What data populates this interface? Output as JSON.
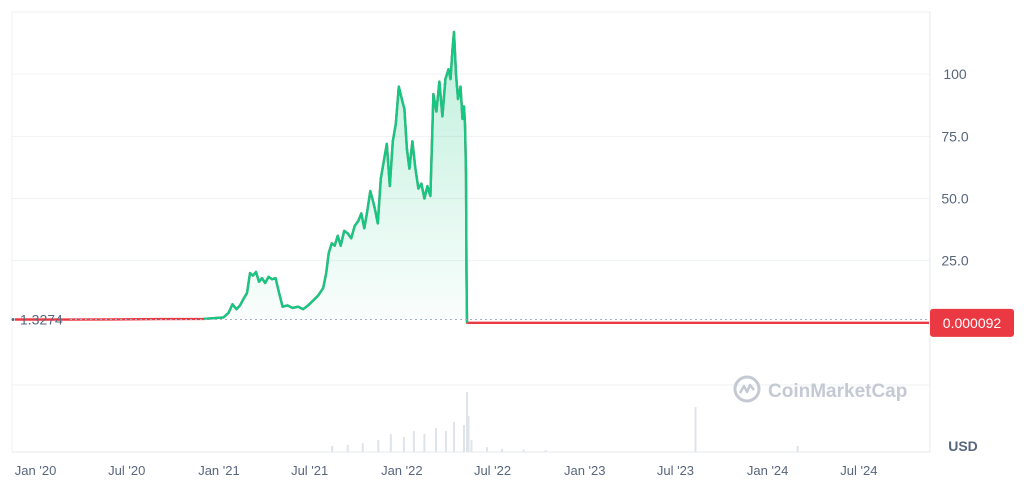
{
  "chart_data": {
    "type": "line",
    "title": "",
    "xlabel": "",
    "ylabel": "",
    "currency_label": "USD",
    "watermark": "CoinMarketCap",
    "baseline_label": "1.3274",
    "current_price_label": "0.000092",
    "y_ticks": [
      {
        "value": 25,
        "label": "25.0"
      },
      {
        "value": 50,
        "label": "50.0"
      },
      {
        "value": 75,
        "label": "75.0"
      },
      {
        "value": 100,
        "label": "100"
      }
    ],
    "ylim": [
      -25,
      125
    ],
    "x_ticks": [
      "Jan '20",
      "Jul '20",
      "Jan '21",
      "Jul '21",
      "Jan '22",
      "Jul '22",
      "Jan '23",
      "Jul '23",
      "Jan '24",
      "Jul '24"
    ],
    "xlim": [
      "2019-11-15",
      "2024-11-20"
    ],
    "grid": true,
    "colors": {
      "up": "#16c784",
      "down": "#ea3943",
      "up_fill": "#16c784",
      "grid": "#eff2f5",
      "axis_text": "#58667e",
      "watermark": "#c4c9d3"
    },
    "series": [
      {
        "points": [
          [
            "2019-11-21",
            1.33
          ],
          [
            "2020-03-01",
            1.3
          ],
          [
            "2020-06-01",
            1.4
          ],
          [
            "2020-09-01",
            1.5
          ],
          [
            "2020-12-01",
            1.6
          ],
          [
            "2021-01-10",
            2.2
          ],
          [
            "2021-01-20",
            4.0
          ],
          [
            "2021-01-28",
            7.5
          ],
          [
            "2021-02-05",
            5.5
          ],
          [
            "2021-02-12",
            7.0
          ],
          [
            "2021-02-20",
            10.0
          ],
          [
            "2021-02-26",
            12.0
          ],
          [
            "2021-03-04",
            20.0
          ],
          [
            "2021-03-10",
            19.0
          ],
          [
            "2021-03-16",
            20.5
          ],
          [
            "2021-03-22",
            16.5
          ],
          [
            "2021-03-28",
            18.0
          ],
          [
            "2021-04-03",
            16.0
          ],
          [
            "2021-04-10",
            18.5
          ],
          [
            "2021-04-17",
            17.5
          ],
          [
            "2021-04-24",
            18.0
          ],
          [
            "2021-05-01",
            12.0
          ],
          [
            "2021-05-08",
            6.5
          ],
          [
            "2021-05-18",
            7.0
          ],
          [
            "2021-05-28",
            6.0
          ],
          [
            "2021-06-08",
            6.5
          ],
          [
            "2021-06-18",
            5.5
          ],
          [
            "2021-06-28",
            7.0
          ],
          [
            "2021-07-08",
            9.0
          ],
          [
            "2021-07-18",
            11.0
          ],
          [
            "2021-07-28",
            14.0
          ],
          [
            "2021-08-03",
            20.0
          ],
          [
            "2021-08-08",
            28.0
          ],
          [
            "2021-08-14",
            32.0
          ],
          [
            "2021-08-20",
            31.0
          ],
          [
            "2021-08-26",
            35.0
          ],
          [
            "2021-09-01",
            31.0
          ],
          [
            "2021-09-08",
            37.0
          ],
          [
            "2021-09-15",
            36.0
          ],
          [
            "2021-09-22",
            34.0
          ],
          [
            "2021-09-29",
            39.0
          ],
          [
            "2021-10-06",
            41.0
          ],
          [
            "2021-10-12",
            44.0
          ],
          [
            "2021-10-18",
            38.0
          ],
          [
            "2021-10-24",
            45.0
          ],
          [
            "2021-10-30",
            53.0
          ],
          [
            "2021-11-03",
            50.0
          ],
          [
            "2021-11-08",
            46.0
          ],
          [
            "2021-11-14",
            40.0
          ],
          [
            "2021-11-20",
            58.0
          ],
          [
            "2021-11-26",
            65.0
          ],
          [
            "2021-12-02",
            72.0
          ],
          [
            "2021-12-08",
            55.0
          ],
          [
            "2021-12-14",
            73.0
          ],
          [
            "2021-12-20",
            80.0
          ],
          [
            "2021-12-26",
            95.0
          ],
          [
            "2022-01-01",
            90.0
          ],
          [
            "2022-01-06",
            86.0
          ],
          [
            "2022-01-11",
            70.0
          ],
          [
            "2022-01-16",
            62.0
          ],
          [
            "2022-01-22",
            73.0
          ],
          [
            "2022-01-28",
            62.0
          ],
          [
            "2022-02-03",
            54.0
          ],
          [
            "2022-02-09",
            56.0
          ],
          [
            "2022-02-15",
            50.0
          ],
          [
            "2022-02-21",
            55.0
          ],
          [
            "2022-02-27",
            51.0
          ],
          [
            "2022-03-05",
            92.0
          ],
          [
            "2022-03-11",
            85.0
          ],
          [
            "2022-03-17",
            97.0
          ],
          [
            "2022-03-23",
            83.0
          ],
          [
            "2022-03-29",
            98.0
          ],
          [
            "2022-04-04",
            102.0
          ],
          [
            "2022-04-08",
            98.0
          ],
          [
            "2022-04-12",
            110.0
          ],
          [
            "2022-04-15",
            117.0
          ],
          [
            "2022-04-19",
            100.0
          ],
          [
            "2022-04-23",
            90.0
          ],
          [
            "2022-04-28",
            95.0
          ],
          [
            "2022-05-02",
            82.0
          ],
          [
            "2022-05-05",
            87.0
          ],
          [
            "2022-05-07",
            80.0
          ],
          [
            "2022-05-09",
            60.0
          ],
          [
            "2022-05-10",
            20.0
          ],
          [
            "2022-05-11",
            0.05
          ],
          [
            "2022-05-20",
            0.0003
          ],
          [
            "2022-08-01",
            0.0002
          ],
          [
            "2023-01-01",
            0.00015
          ],
          [
            "2023-07-01",
            0.00012
          ],
          [
            "2024-01-01",
            0.0001
          ],
          [
            "2024-06-01",
            9e-05
          ],
          [
            "2024-11-18",
            9.2e-05
          ]
        ]
      }
    ],
    "volume": [
      [
        "2021-08-15",
        0.1
      ],
      [
        "2021-09-15",
        0.12
      ],
      [
        "2021-10-15",
        0.15
      ],
      [
        "2021-11-15",
        0.2
      ],
      [
        "2021-12-10",
        0.3
      ],
      [
        "2022-01-05",
        0.25
      ],
      [
        "2022-01-25",
        0.35
      ],
      [
        "2022-02-15",
        0.3
      ],
      [
        "2022-03-10",
        0.4
      ],
      [
        "2022-03-30",
        0.35
      ],
      [
        "2022-04-15",
        0.5
      ],
      [
        "2022-05-05",
        0.45
      ],
      [
        "2022-05-11",
        1.0
      ],
      [
        "2022-05-14",
        0.6
      ],
      [
        "2022-05-20",
        0.2
      ],
      [
        "2022-06-20",
        0.08
      ],
      [
        "2022-07-20",
        0.05
      ],
      [
        "2022-09-01",
        0.04
      ],
      [
        "2022-10-15",
        0.03
      ],
      [
        "2023-08-10",
        0.75
      ],
      [
        "2024-03-01",
        0.1
      ]
    ]
  }
}
